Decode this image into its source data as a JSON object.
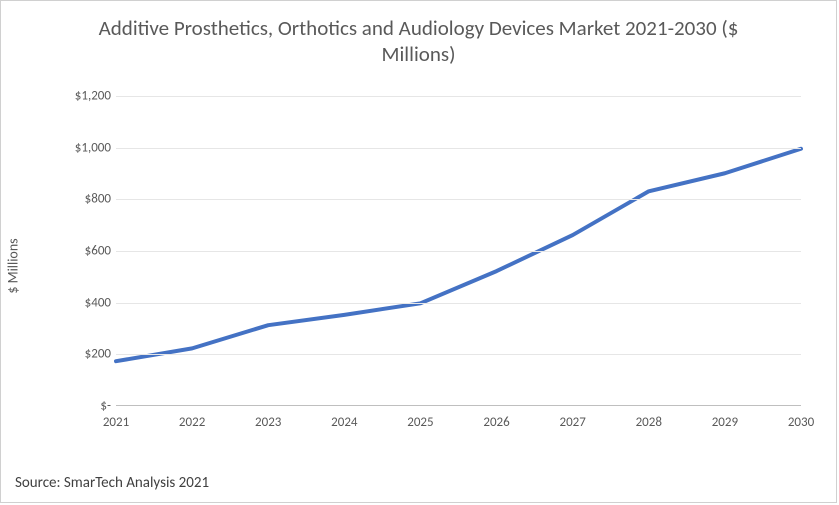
{
  "chart": {
    "type": "line",
    "title": "Additive Prosthetics, Orthotics and Audiology Devices Market 2021-2030 ($ Millions)",
    "title_fontsize": 21,
    "title_color": "#595959",
    "ylabel": "$ Millions",
    "ylabel_fontsize": 14,
    "label_color": "#595959",
    "background_color": "#ffffff",
    "border_color": "#d0d0d0",
    "grid_color": "#e6e6e6",
    "axis_color": "#bfbfbf",
    "xlim": [
      2021,
      2030
    ],
    "ylim": [
      0,
      1200
    ],
    "ytick_step": 200,
    "ytick_labels": [
      "$-",
      "$200",
      "$400",
      "$600",
      "$800",
      "$1,000",
      "$1,200"
    ],
    "x_labels": [
      "2021",
      "2022",
      "2023",
      "2024",
      "2025",
      "2026",
      "2027",
      "2028",
      "2029",
      "2030"
    ],
    "x_values": [
      2021,
      2022,
      2023,
      2024,
      2025,
      2026,
      2027,
      2028,
      2029,
      2030
    ],
    "y_values": [
      170,
      220,
      310,
      350,
      395,
      520,
      660,
      830,
      900,
      995
    ],
    "line_color": "#4472c4",
    "line_width": 4,
    "tick_fontsize": 13,
    "source": "Source: SmarTech Analysis 2021",
    "source_fontsize": 15,
    "source_color": "#404040"
  }
}
